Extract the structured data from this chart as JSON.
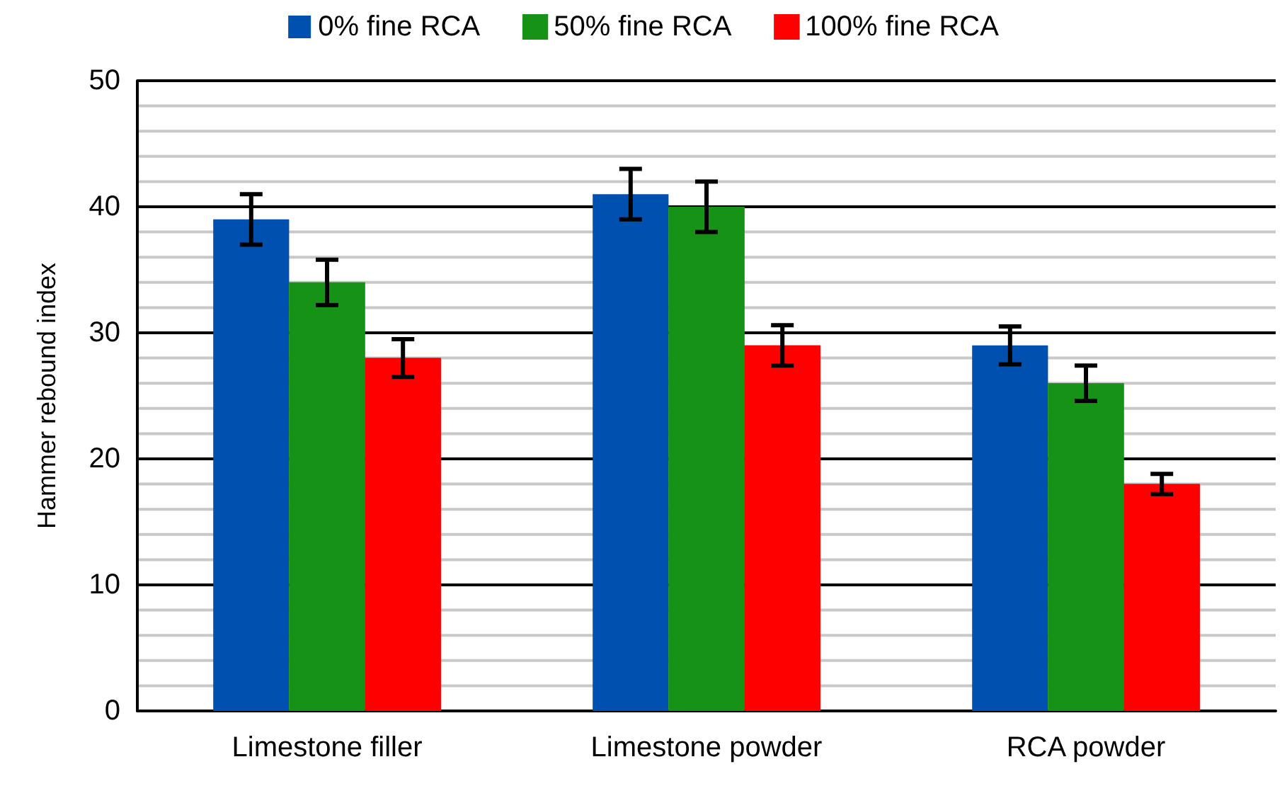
{
  "chart_data": {
    "type": "bar",
    "ylabel": "Hammer rebound index",
    "categories": [
      "Limestone filler",
      "Limestone powder",
      "RCA powder"
    ],
    "series": [
      {
        "name": "0% fine RCA",
        "color": "#0050b0",
        "values": [
          39,
          41,
          29
        ],
        "errors": [
          2,
          2,
          1.5
        ]
      },
      {
        "name": "50% fine RCA",
        "color": "#169216",
        "values": [
          34,
          40,
          26
        ],
        "errors": [
          1.8,
          2,
          1.4
        ]
      },
      {
        "name": "100% fine RCA",
        "color": "#ff0000",
        "values": [
          28,
          29,
          18
        ],
        "errors": [
          1.5,
          1.6,
          0.8
        ]
      }
    ],
    "ylim": [
      0,
      50
    ],
    "yticks": [
      0,
      {
        "value": 2,
        "label": null
      },
      {
        "value": 4,
        "label": null
      },
      {
        "value": 6,
        "label": null
      },
      {
        "value": 8,
        "label": null
      },
      10,
      {
        "value": 12,
        "label": null
      },
      {
        "value": 14,
        "label": null
      },
      {
        "value": 16,
        "label": null
      },
      {
        "value": 18,
        "label": null
      },
      20,
      {
        "value": 22,
        "label": null
      },
      {
        "value": 24,
        "label": null
      },
      {
        "value": 26,
        "label": null
      },
      {
        "value": 28,
        "label": null
      },
      30,
      {
        "value": 32,
        "label": null
      },
      {
        "value": 34,
        "label": null
      },
      {
        "value": 36,
        "label": null
      },
      {
        "value": 38,
        "label": null
      },
      40,
      {
        "value": 42,
        "label": null
      },
      {
        "value": 44,
        "label": null
      },
      {
        "value": 46,
        "label": null
      },
      {
        "value": 48,
        "label": null
      },
      50
    ],
    "grid": "y",
    "legend": "top"
  }
}
